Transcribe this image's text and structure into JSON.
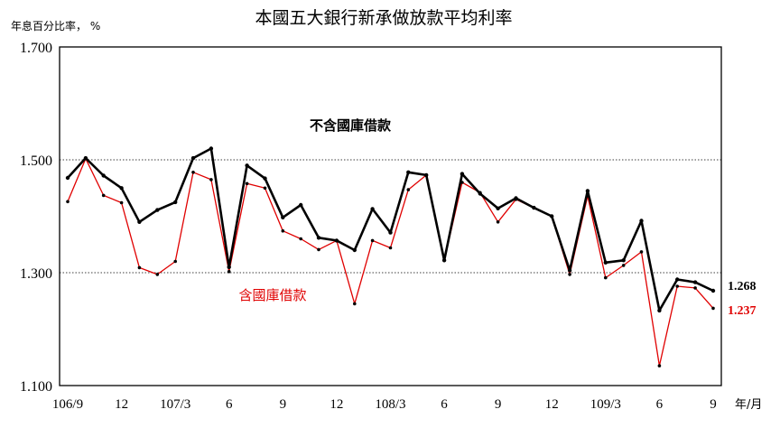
{
  "chart_data": {
    "type": "line",
    "title": "本國五大銀行新承做放款平均利率",
    "ylabel": "年息百分比率， %",
    "xlabel": "年/月",
    "ylim": [
      1.1,
      1.7
    ],
    "yticks": [
      "1.700",
      "1.500",
      "1.300",
      "1.100"
    ],
    "grid": "horizontal dotted at 1.500 and 1.300",
    "x_tick_labels": [
      "106/9",
      "12",
      "107/3",
      "6",
      "9",
      "12",
      "108/3",
      "6",
      "9",
      "12",
      "109/3",
      "6",
      "9"
    ],
    "x": [
      "106/9",
      "106/10",
      "106/11",
      "106/12",
      "107/1",
      "107/2",
      "107/3",
      "107/4",
      "107/5",
      "107/6",
      "107/7",
      "107/8",
      "107/9",
      "107/10",
      "107/11",
      "107/12",
      "108/1",
      "108/2",
      "108/3",
      "108/4",
      "108/5",
      "108/6",
      "108/7",
      "108/8",
      "108/9",
      "108/10",
      "108/11",
      "108/12",
      "109/1",
      "109/2",
      "109/3",
      "109/4",
      "109/5",
      "109/6",
      "109/7",
      "109/8",
      "109/9"
    ],
    "series": [
      {
        "name": "不含國庫借款",
        "color": "#000000",
        "end_label": "1.268",
        "values": [
          1.468,
          1.503,
          1.472,
          1.45,
          1.39,
          1.411,
          1.425,
          1.503,
          1.52,
          1.31,
          1.49,
          1.467,
          1.398,
          1.42,
          1.362,
          1.357,
          1.34,
          1.413,
          1.371,
          1.478,
          1.473,
          1.322,
          1.475,
          1.44,
          1.414,
          1.432,
          1.415,
          1.4,
          1.304,
          1.445,
          1.318,
          1.322,
          1.392,
          1.233,
          1.288,
          1.283,
          1.268
        ]
      },
      {
        "name": "含國庫借款",
        "color": "#e00000",
        "end_label": "1.237",
        "values": [
          1.426,
          1.502,
          1.437,
          1.424,
          1.309,
          1.297,
          1.32,
          1.478,
          1.465,
          1.302,
          1.458,
          1.45,
          1.374,
          1.36,
          1.341,
          1.357,
          1.245,
          1.357,
          1.344,
          1.447,
          1.473,
          1.322,
          1.46,
          1.442,
          1.39,
          1.43,
          1.415,
          1.4,
          1.297,
          1.436,
          1.291,
          1.313,
          1.337,
          1.135,
          1.276,
          1.273,
          1.237
        ]
      }
    ]
  }
}
